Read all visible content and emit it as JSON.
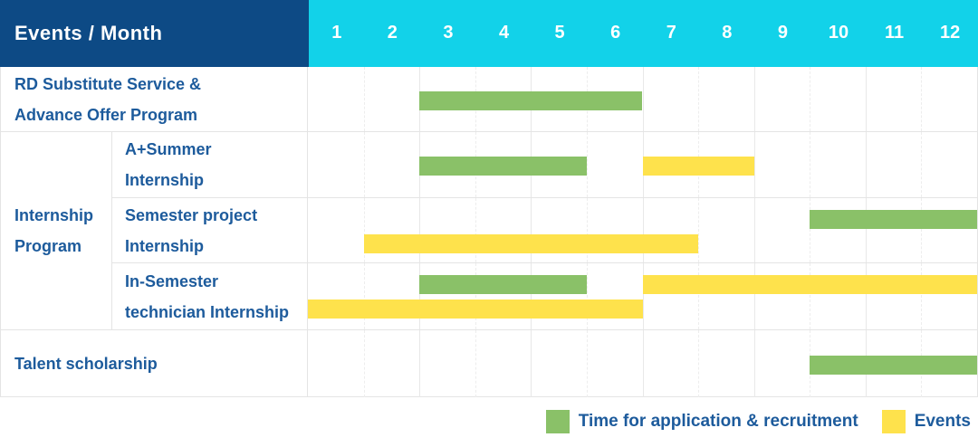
{
  "header": {
    "title": "Events / Month",
    "months": [
      "1",
      "2",
      "3",
      "4",
      "5",
      "6",
      "7",
      "8",
      "9",
      "10",
      "11",
      "12"
    ]
  },
  "colors": {
    "navy_header": "#0d4a85",
    "cyan_header": "#12d2e9",
    "green_bar": "#8ac168",
    "yellow_bar": "#fee24c",
    "label_text_blue": "#1d5b9c",
    "grid_border": "#e4e4e4"
  },
  "legend": {
    "items": [
      {
        "label": "Time for application & recruitment",
        "series": "Time for application & recruitment",
        "color": "#8ac168"
      },
      {
        "label": "Events",
        "series": "Events",
        "color": "#fee24c"
      }
    ]
  },
  "chart_data": {
    "type": "table",
    "subtype": "gantt-schedule",
    "title": "Events / Month",
    "x_categories": [
      "1",
      "2",
      "3",
      "4",
      "5",
      "6",
      "7",
      "8",
      "9",
      "10",
      "11",
      "12"
    ],
    "x_range": [
      1,
      12
    ],
    "grid": true,
    "legend_entries": [
      "Time for application & recruitment",
      "Events"
    ],
    "legend_position": "bottom-right",
    "series_colors": {
      "Time for application & recruitment": "#8ac168",
      "Events": "#fee24c"
    },
    "group_label": "Internship Program",
    "group_label_lines": [
      "Internship",
      "Program"
    ],
    "rows": [
      {
        "group": "",
        "label": "RD Substitute Service & Advance Offer Program",
        "label_lines": [
          "RD Substitute Service &",
          "Advance Offer Program"
        ],
        "tracks": [
          [
            {
              "series": "Time for application & recruitment",
              "start_month": 3,
              "end_month": 6
            }
          ]
        ]
      },
      {
        "group": "Internship Program",
        "label": "A+Summer Internship",
        "label_lines": [
          "A+Summer",
          "Internship"
        ],
        "tracks": [
          [
            {
              "series": "Time for application & recruitment",
              "start_month": 3,
              "end_month": 5
            },
            {
              "series": "Events",
              "start_month": 7,
              "end_month": 8
            }
          ]
        ]
      },
      {
        "group": "Internship Program",
        "label": "Semester project Internship",
        "label_lines": [
          "Semester project",
          "Internship"
        ],
        "tracks": [
          [
            {
              "series": "Time for application & recruitment",
              "start_month": 10,
              "end_month": 12
            }
          ],
          [
            {
              "series": "Events",
              "start_month": 2,
              "end_month": 7
            }
          ]
        ]
      },
      {
        "group": "Internship Program",
        "label": "In-Semester technician Internship",
        "label_lines": [
          "In-Semester",
          "technician Internship"
        ],
        "tracks": [
          [
            {
              "series": "Time for application & recruitment",
              "start_month": 3,
              "end_month": 5
            },
            {
              "series": "Events",
              "start_month": 7,
              "end_month": 12
            }
          ],
          [
            {
              "series": "Events",
              "start_month": 1,
              "end_month": 6
            }
          ]
        ]
      },
      {
        "group": "",
        "label": "Talent scholarship",
        "label_lines": [
          "Talent scholarship"
        ],
        "tracks": [
          [
            {
              "series": "Time for application & recruitment",
              "start_month": 10,
              "end_month": 12
            }
          ]
        ]
      }
    ]
  }
}
